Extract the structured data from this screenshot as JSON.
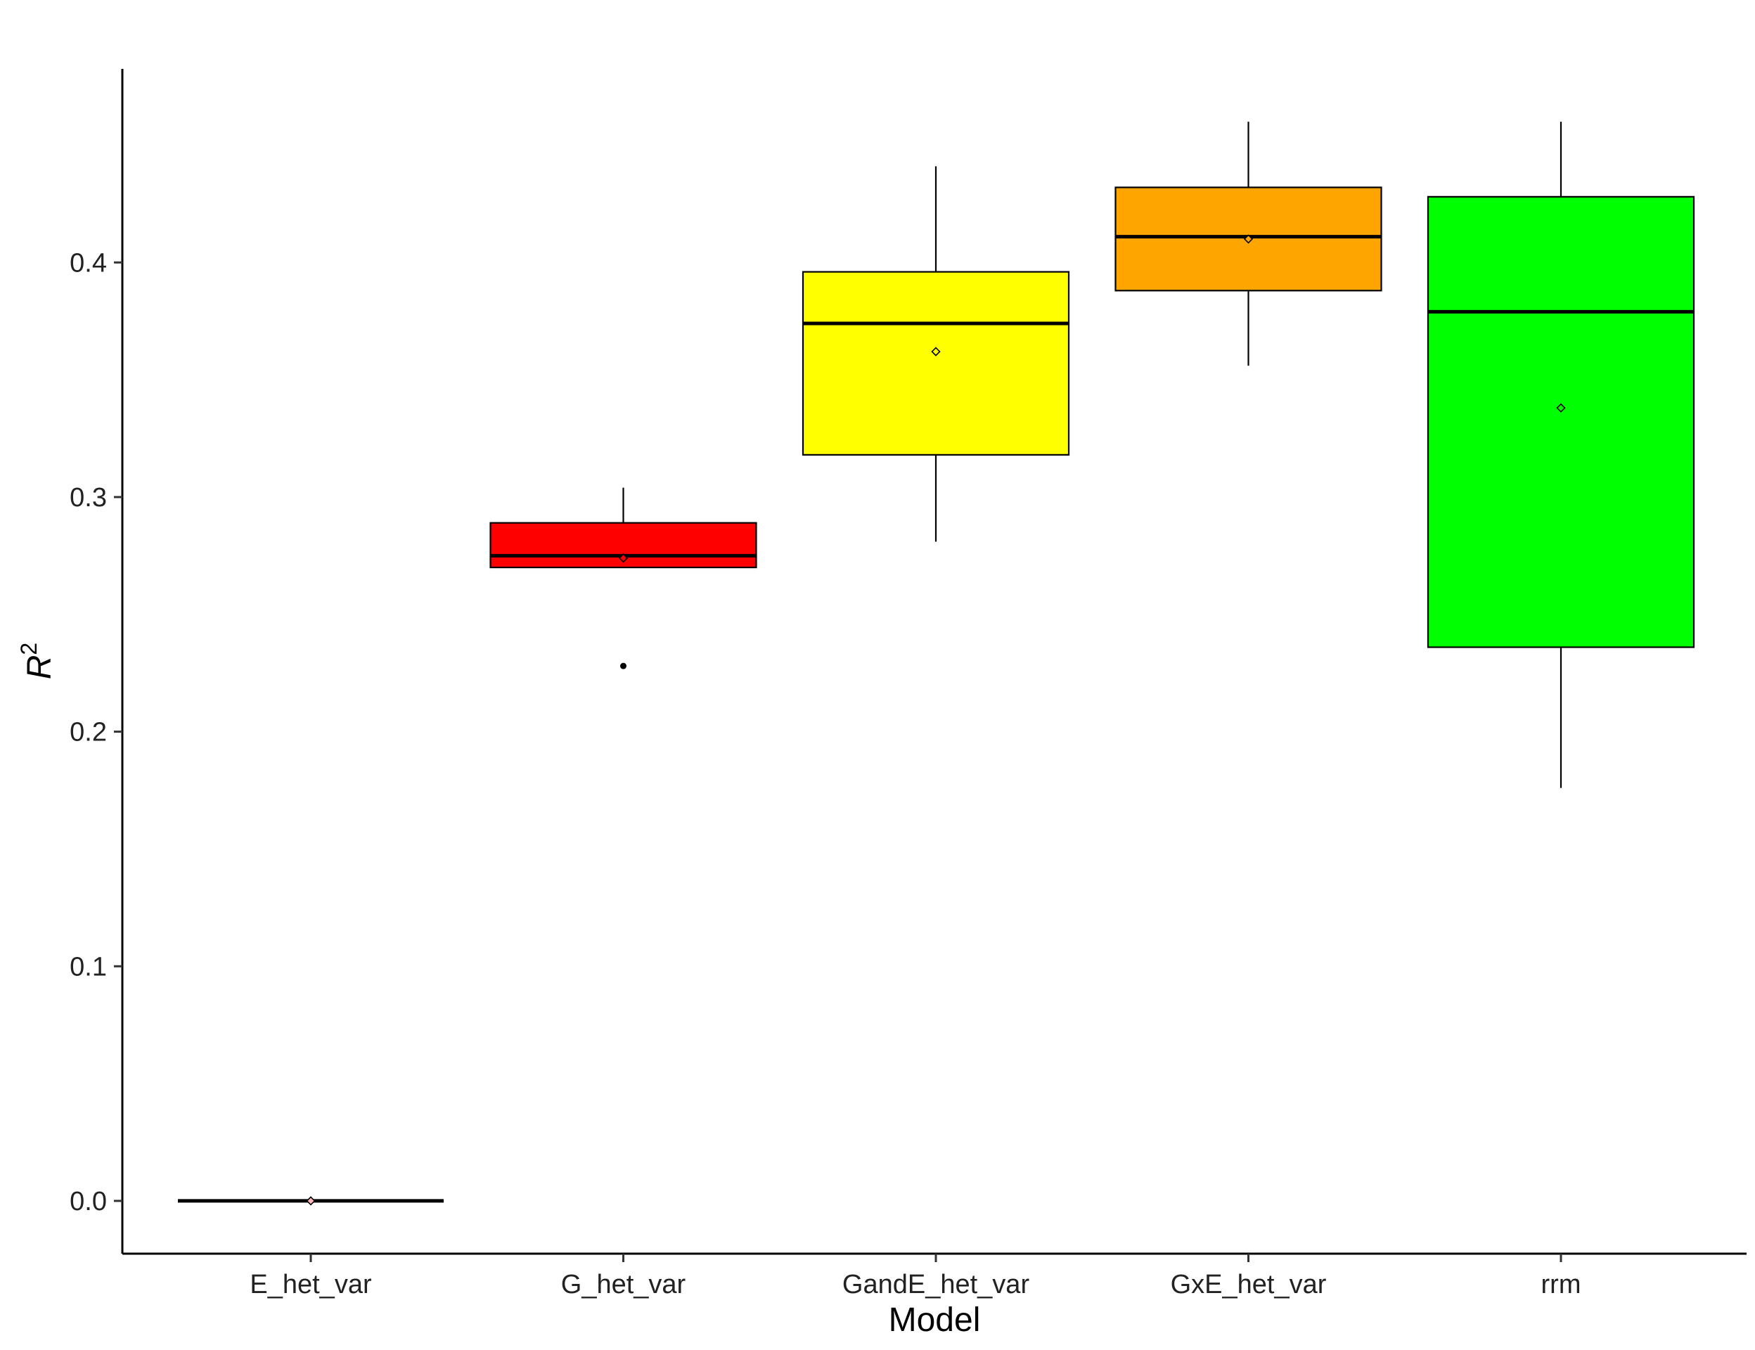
{
  "chart_data": {
    "type": "box",
    "xlabel": "Model",
    "ylabel": "R",
    "ylabel_superscript": "2",
    "ylim": [
      -0.0225,
      0.4825
    ],
    "yticks": [
      "0.0",
      "0.1",
      "0.2",
      "0.3",
      "0.4"
    ],
    "ytick_values": [
      0.0,
      0.1,
      0.2,
      0.3,
      0.4
    ],
    "grid": false,
    "legend": "none",
    "categories": [
      "E_het_var",
      "G_het_var",
      "GandE_het_var",
      "GxE_het_var",
      "rrm"
    ],
    "boxes": [
      {
        "category": "E_het_var",
        "whisker_low": 0.0,
        "q1": 0.0,
        "median": 0.0,
        "q3": 0.0,
        "whisker_high": 0.0,
        "mean": 0.0,
        "outliers": [],
        "color": "#ffb6c1"
      },
      {
        "category": "G_het_var",
        "whisker_low": 0.27,
        "q1": 0.27,
        "median": 0.275,
        "q3": 0.289,
        "whisker_high": 0.304,
        "mean": 0.274,
        "outliers": [
          0.228
        ],
        "color": "#ff0000"
      },
      {
        "category": "GandE_het_var",
        "whisker_low": 0.281,
        "q1": 0.318,
        "median": 0.374,
        "q3": 0.396,
        "whisker_high": 0.441,
        "mean": 0.362,
        "outliers": [],
        "color": "#ffff00"
      },
      {
        "category": "GxE_het_var",
        "whisker_low": 0.356,
        "q1": 0.388,
        "median": 0.411,
        "q3": 0.432,
        "whisker_high": 0.46,
        "mean": 0.41,
        "outliers": [],
        "color": "#ffa500"
      },
      {
        "category": "rrm",
        "whisker_low": 0.176,
        "q1": 0.236,
        "median": 0.379,
        "q3": 0.428,
        "whisker_high": 0.46,
        "mean": 0.338,
        "outliers": [],
        "color": "#00ff00"
      }
    ]
  }
}
